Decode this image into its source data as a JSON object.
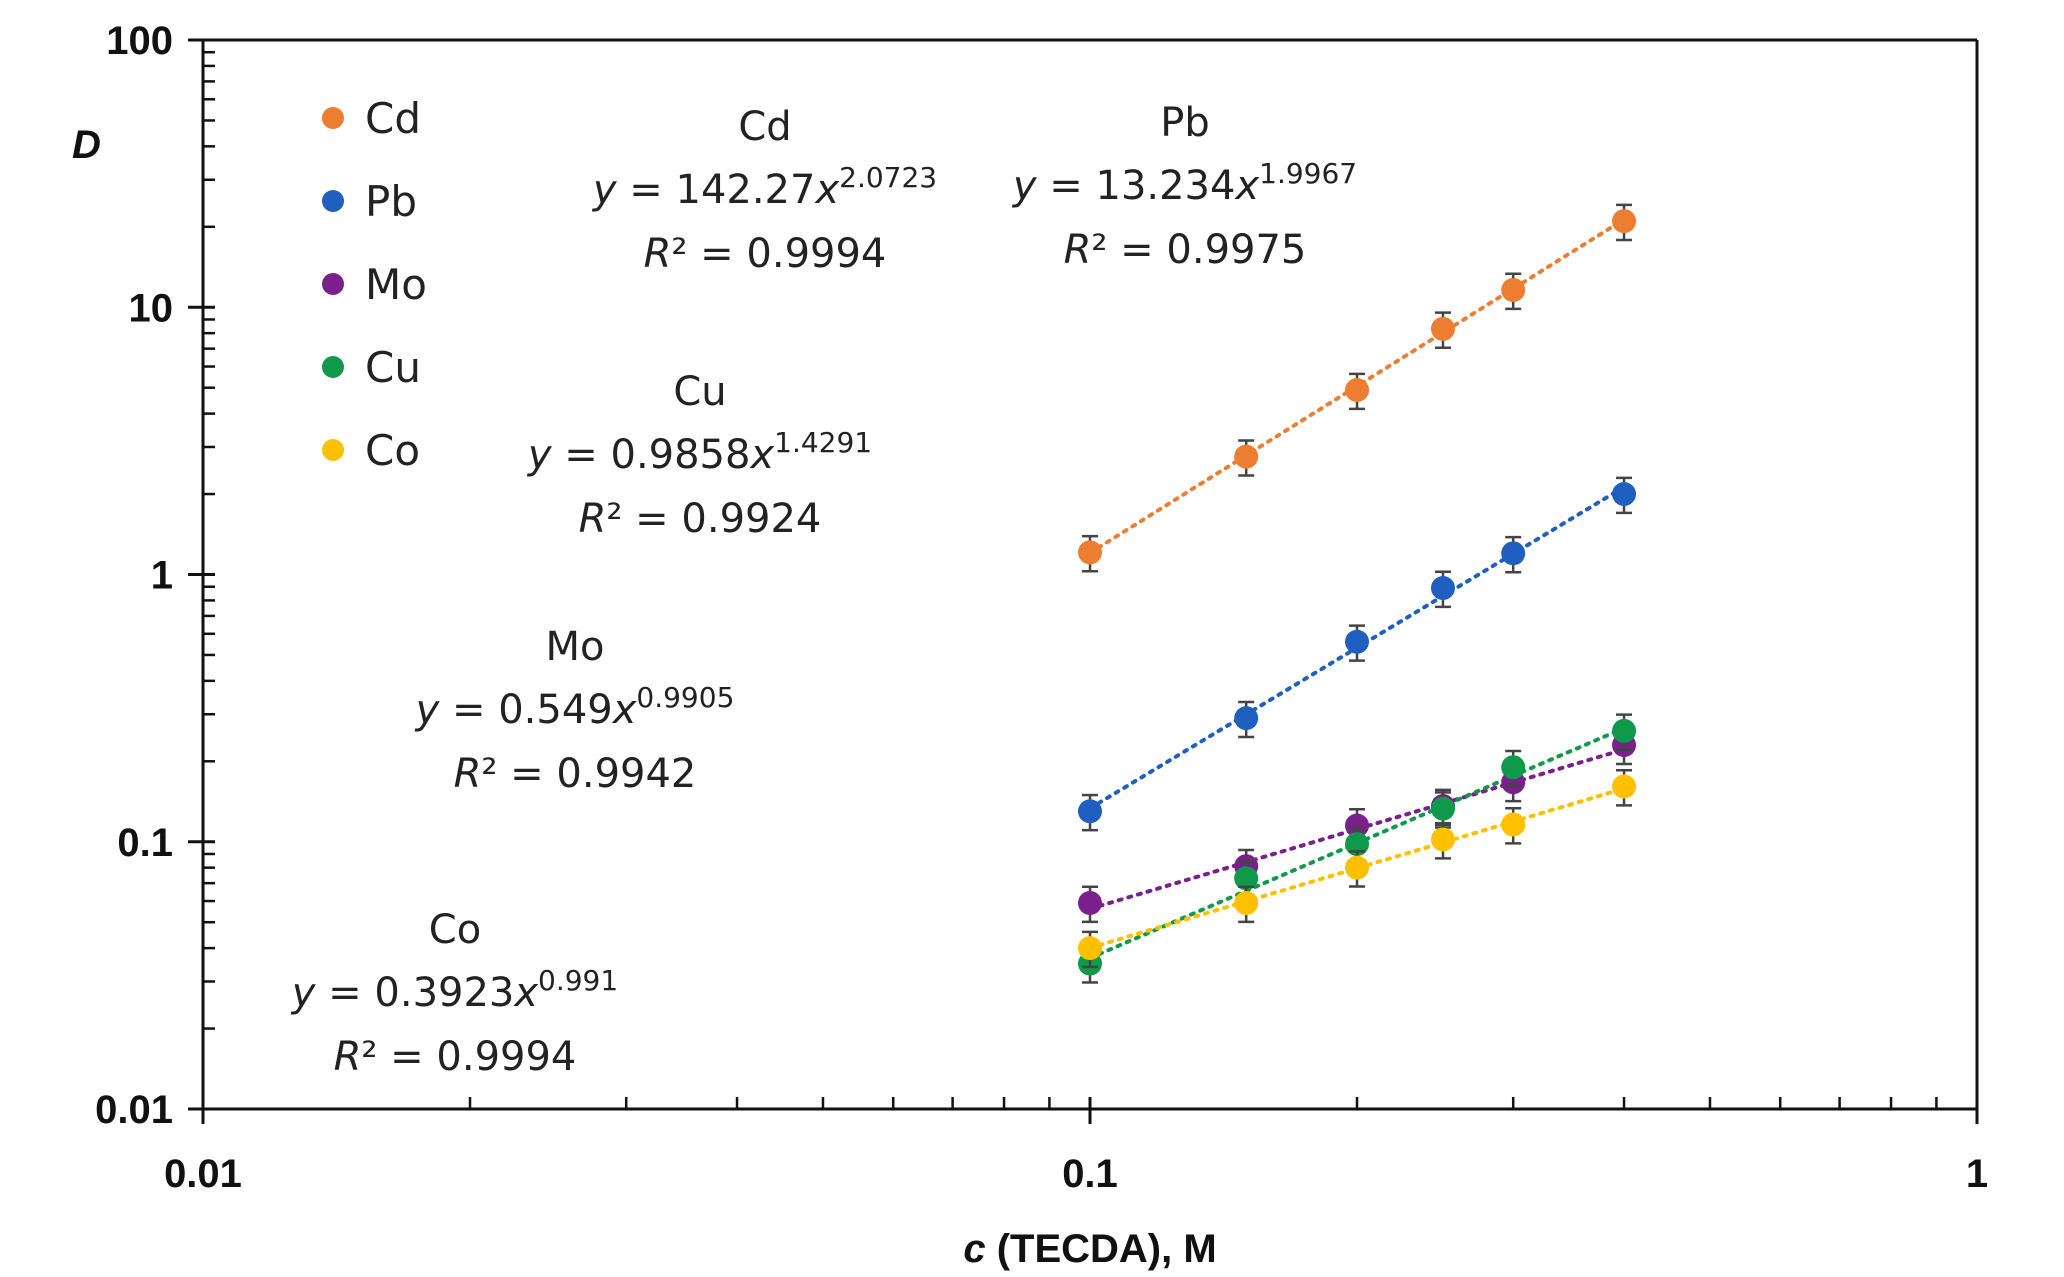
{
  "chart_data": {
    "type": "scatter",
    "title": "",
    "xlabel_italic": "c",
    "xlabel_rest": " (TECDA), M",
    "ylabel": "D",
    "xscale": "log",
    "yscale": "log",
    "xlim": [
      0.01,
      1
    ],
    "ylim": [
      0.01,
      100
    ],
    "x_ticks": [
      0.01,
      0.1,
      1
    ],
    "x_tick_labels": [
      "0.01",
      "0.1",
      "1"
    ],
    "y_ticks": [
      0.01,
      0.1,
      1,
      10,
      100
    ],
    "y_tick_labels": [
      "0.01",
      "0.1",
      "1",
      "10",
      "100"
    ],
    "grid": false,
    "legend_position": "top-left",
    "x": [
      0.1,
      0.15,
      0.2,
      0.25,
      0.3,
      0.4
    ],
    "series": [
      {
        "name": "Cd",
        "color": "#ED7D31",
        "values": [
          1.21,
          2.76,
          4.9,
          8.3,
          11.6,
          21.0
        ],
        "error_rel": 0.15,
        "fit": {
          "a": 142.27,
          "b": 2.0723,
          "r2": "0.9994",
          "label": "Cd",
          "eq_coef": "y = 142.27x",
          "eq_exp": "2.0723",
          "r2_text": "= 0.9994"
        }
      },
      {
        "name": "Pb",
        "color": "#1F5FBF",
        "values": [
          0.13,
          0.29,
          0.56,
          0.89,
          1.2,
          2.0
        ],
        "error_rel": 0.15,
        "fit": {
          "a": 13.234,
          "b": 1.9967,
          "r2": "0.9975",
          "label": "Pb",
          "eq_coef": "y = 13.234x",
          "eq_exp": "1.9967",
          "r2_text": "= 0.9975"
        }
      },
      {
        "name": "Mo",
        "color": "#7B1F8C",
        "values": [
          0.059,
          0.081,
          0.115,
          0.136,
          0.167,
          0.23
        ],
        "error_rel": 0.15,
        "fit": {
          "a": 0.549,
          "b": 0.9905,
          "r2": "0.9942",
          "label": "Mo",
          "eq_coef": "y = 0.549x",
          "eq_exp": "0.9905",
          "r2_text": "= 0.9942"
        }
      },
      {
        "name": "Cu",
        "color": "#0E9A4A",
        "values": [
          0.035,
          0.073,
          0.098,
          0.133,
          0.19,
          0.26
        ],
        "error_rel": 0.15,
        "fit": {
          "a": 0.9858,
          "b": 1.4291,
          "r2": "0.9924",
          "label": "Cu",
          "eq_coef": "y = 0.9858x",
          "eq_exp": "1.4291",
          "r2_text": "= 0.9924"
        }
      },
      {
        "name": "Co",
        "color": "#FFC000",
        "values": [
          0.04,
          0.059,
          0.08,
          0.102,
          0.116,
          0.161
        ],
        "error_rel": 0.15,
        "fit": {
          "a": 0.3923,
          "b": 0.991,
          "r2": "0.9994",
          "label": "Co",
          "eq_coef": "y = 0.3923x",
          "eq_exp": "0.991",
          "r2_text": "= 0.9994"
        }
      }
    ],
    "annotations": [
      {
        "series": "Cd",
        "title": "Cd",
        "equation": "y = 142.27x",
        "exponent": "2.0723",
        "r2": "R² = 0.9994"
      },
      {
        "series": "Pb",
        "title": "Pb",
        "equation": "y = 13.234x",
        "exponent": "1.9967",
        "r2": "R² = 0.9975"
      },
      {
        "series": "Cu",
        "title": "Cu",
        "equation": "y = 0.9858x",
        "exponent": "1.4291",
        "r2": "R² = 0.9924"
      },
      {
        "series": "Mo",
        "title": "Mo",
        "equation": "y = 0.549x",
        "exponent": "0.9905",
        "r2": "R² = 0.9942"
      },
      {
        "series": "Co",
        "title": "Co",
        "equation": "y = 0.3923x",
        "exponent": "0.991",
        "r2": "R² = 0.9994"
      }
    ]
  }
}
